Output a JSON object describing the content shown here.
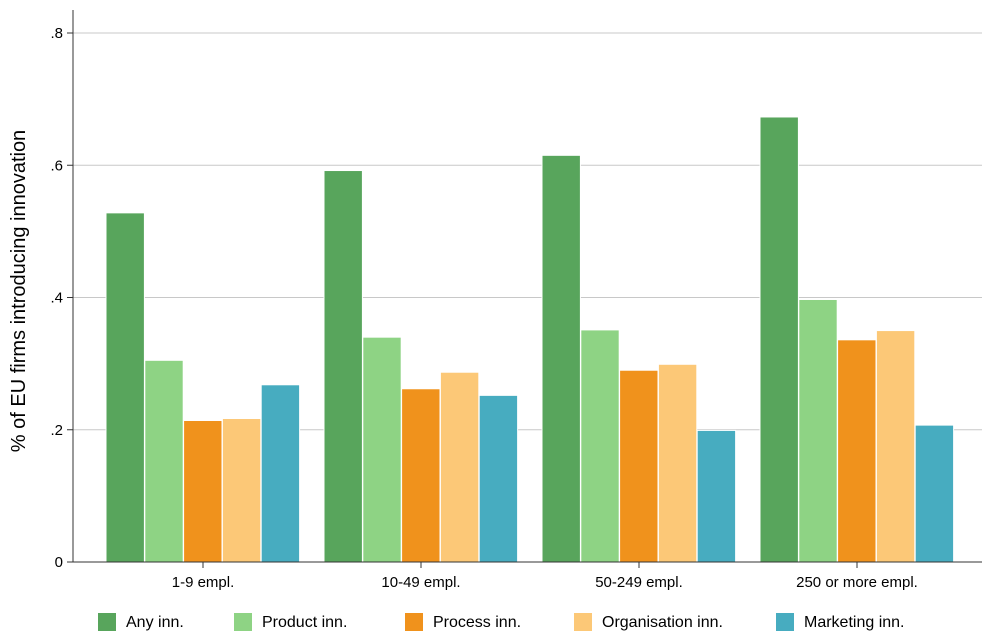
{
  "chart_data": {
    "type": "bar",
    "ylabel": "% of EU firms introducing innovation",
    "xlabel": "",
    "categories": [
      "1-9 empl.",
      "10-49 empl.",
      "50-249 empl.",
      "250 or more empl."
    ],
    "series": [
      {
        "name": "Any inn.",
        "color": "#58a55c",
        "values": [
          0.528,
          0.592,
          0.615,
          0.673
        ]
      },
      {
        "name": "Product inn.",
        "color": "#8ed384",
        "values": [
          0.305,
          0.34,
          0.351,
          0.397
        ]
      },
      {
        "name": "Process inn.",
        "color": "#f0921c",
        "values": [
          0.214,
          0.262,
          0.29,
          0.336
        ]
      },
      {
        "name": "Organisation inn.",
        "color": "#fcc877",
        "values": [
          0.217,
          0.287,
          0.299,
          0.35
        ]
      },
      {
        "name": "Marketing inn.",
        "color": "#47acc0",
        "values": [
          0.268,
          0.252,
          0.199,
          0.207
        ]
      }
    ],
    "ylim": [
      0,
      0.8
    ],
    "yticks": [
      0,
      0.2,
      0.4,
      0.6,
      0.8
    ],
    "ytick_labels": [
      "0",
      ".2",
      ".4",
      ".6",
      ".8"
    ],
    "grid": true,
    "legend_position": "bottom"
  }
}
